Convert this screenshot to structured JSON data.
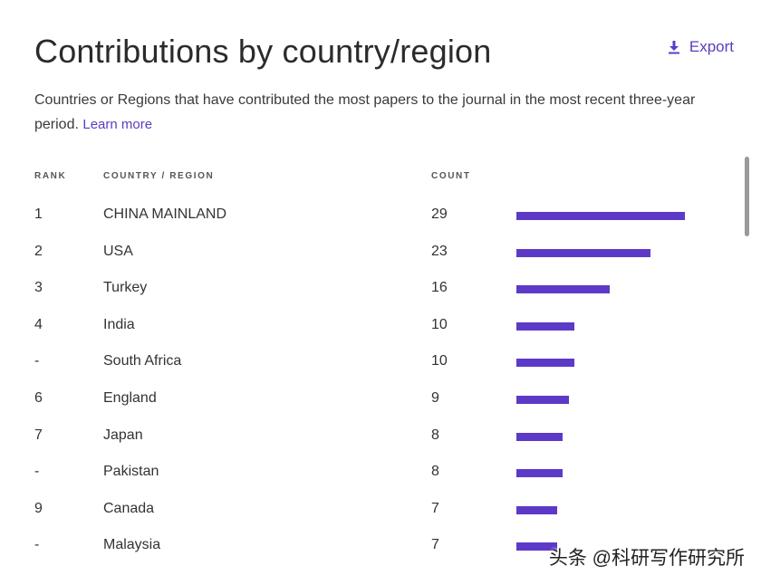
{
  "title": "Contributions by country/region",
  "export_label": "Export",
  "description": "Countries or Regions that have contributed the most papers to the journal in the most recent three-year period.",
  "learn_more": "Learn more",
  "columns": {
    "rank": "RANK",
    "country": "COUNTRY / REGION",
    "count": "COUNT"
  },
  "accent_color": "#5c3ac7",
  "link_color": "#5b3cc4",
  "rows": [
    {
      "rank": "1",
      "country": "CHINA MAINLAND",
      "count": "29",
      "value": 29
    },
    {
      "rank": "2",
      "country": "USA",
      "count": "23",
      "value": 23
    },
    {
      "rank": "3",
      "country": "Turkey",
      "count": "16",
      "value": 16
    },
    {
      "rank": "4",
      "country": "India",
      "count": "10",
      "value": 10
    },
    {
      "rank": "-",
      "country": "South Africa",
      "count": "10",
      "value": 10
    },
    {
      "rank": "6",
      "country": "England",
      "count": "9",
      "value": 9
    },
    {
      "rank": "7",
      "country": "Japan",
      "count": "8",
      "value": 8
    },
    {
      "rank": "-",
      "country": "Pakistan",
      "count": "8",
      "value": 8
    },
    {
      "rank": "9",
      "country": "Canada",
      "count": "7",
      "value": 7
    },
    {
      "rank": "-",
      "country": "Malaysia",
      "count": "7",
      "value": 7
    }
  ],
  "watermark": "头条 @科研写作研究所"
}
